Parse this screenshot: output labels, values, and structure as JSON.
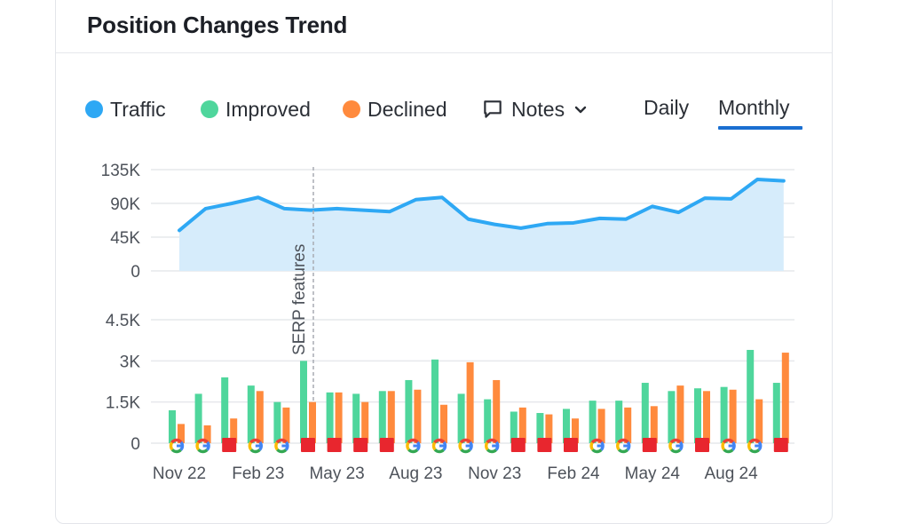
{
  "title": "Position Changes Trend",
  "legend": {
    "traffic": {
      "label": "Traffic",
      "color": "#2ea8f4"
    },
    "improved": {
      "label": "Improved",
      "color": "#4fd69c"
    },
    "declined": {
      "label": "Declined",
      "color": "#ff8a3d"
    },
    "notes": {
      "label": "Notes"
    }
  },
  "period_toggle": {
    "daily": "Daily",
    "monthly": "Monthly",
    "selected": "Monthly"
  },
  "chart_data": {
    "type": "line+bar",
    "annotation": {
      "label": "SERP features",
      "at_index": 5
    },
    "traffic": {
      "yticks": [
        0,
        45000,
        90000,
        135000
      ],
      "ytick_labels": [
        "0",
        "45K",
        "90K",
        "135K"
      ],
      "ylim": [
        0,
        135000
      ],
      "values": [
        54000,
        83000,
        90000,
        98000,
        83000,
        81000,
        83000,
        81000,
        79000,
        95000,
        98000,
        69000,
        62000,
        57000,
        63000,
        64000,
        70000,
        69000,
        86000,
        78000,
        97000,
        96000,
        122000,
        120000
      ]
    },
    "positions": {
      "yticks": [
        0,
        1500,
        3000,
        4500
      ],
      "ytick_labels": [
        "0",
        "1.5K",
        "3K",
        "4.5K"
      ],
      "ylim": [
        0,
        4500
      ],
      "improved": [
        1200,
        1800,
        2400,
        2100,
        1500,
        3000,
        1850,
        1800,
        1900,
        2300,
        3050,
        1800,
        1600,
        1150,
        1100,
        1250,
        1550,
        1550,
        2200,
        1900,
        2000,
        2050,
        3400,
        2200
      ],
      "declined": [
        700,
        650,
        900,
        1900,
        1300,
        1500,
        1850,
        1500,
        1900,
        1950,
        1400,
        2950,
        2300,
        1300,
        1050,
        900,
        1250,
        1300,
        1350,
        2100,
        1900,
        1950,
        1600,
        3300
      ]
    },
    "markers": [
      "google",
      "google",
      "flag",
      "google",
      "google",
      "flag",
      "flag",
      "flag",
      "flag",
      "google",
      "google",
      "google",
      "google",
      "flag",
      "flag",
      "flag",
      "google",
      "google",
      "flag",
      "google",
      "flag",
      "google",
      "google",
      "flag"
    ],
    "x_tick_labels": [
      {
        "label": "Nov 22",
        "index": 0
      },
      {
        "label": "Feb 23",
        "index": 3
      },
      {
        "label": "May 23",
        "index": 6
      },
      {
        "label": "Aug 23",
        "index": 9
      },
      {
        "label": "Nov 23",
        "index": 12
      },
      {
        "label": "Feb 24",
        "index": 15
      },
      {
        "label": "May 24",
        "index": 18
      },
      {
        "label": "Aug 24",
        "index": 21
      }
    ],
    "colors": {
      "traffic_line": "#2ea8f4",
      "traffic_fill": "#d6ecfb",
      "improved": "#4fd69c",
      "declined": "#ff8a3d",
      "grid": "#e6e8ec",
      "flag": "#e8262e"
    }
  }
}
